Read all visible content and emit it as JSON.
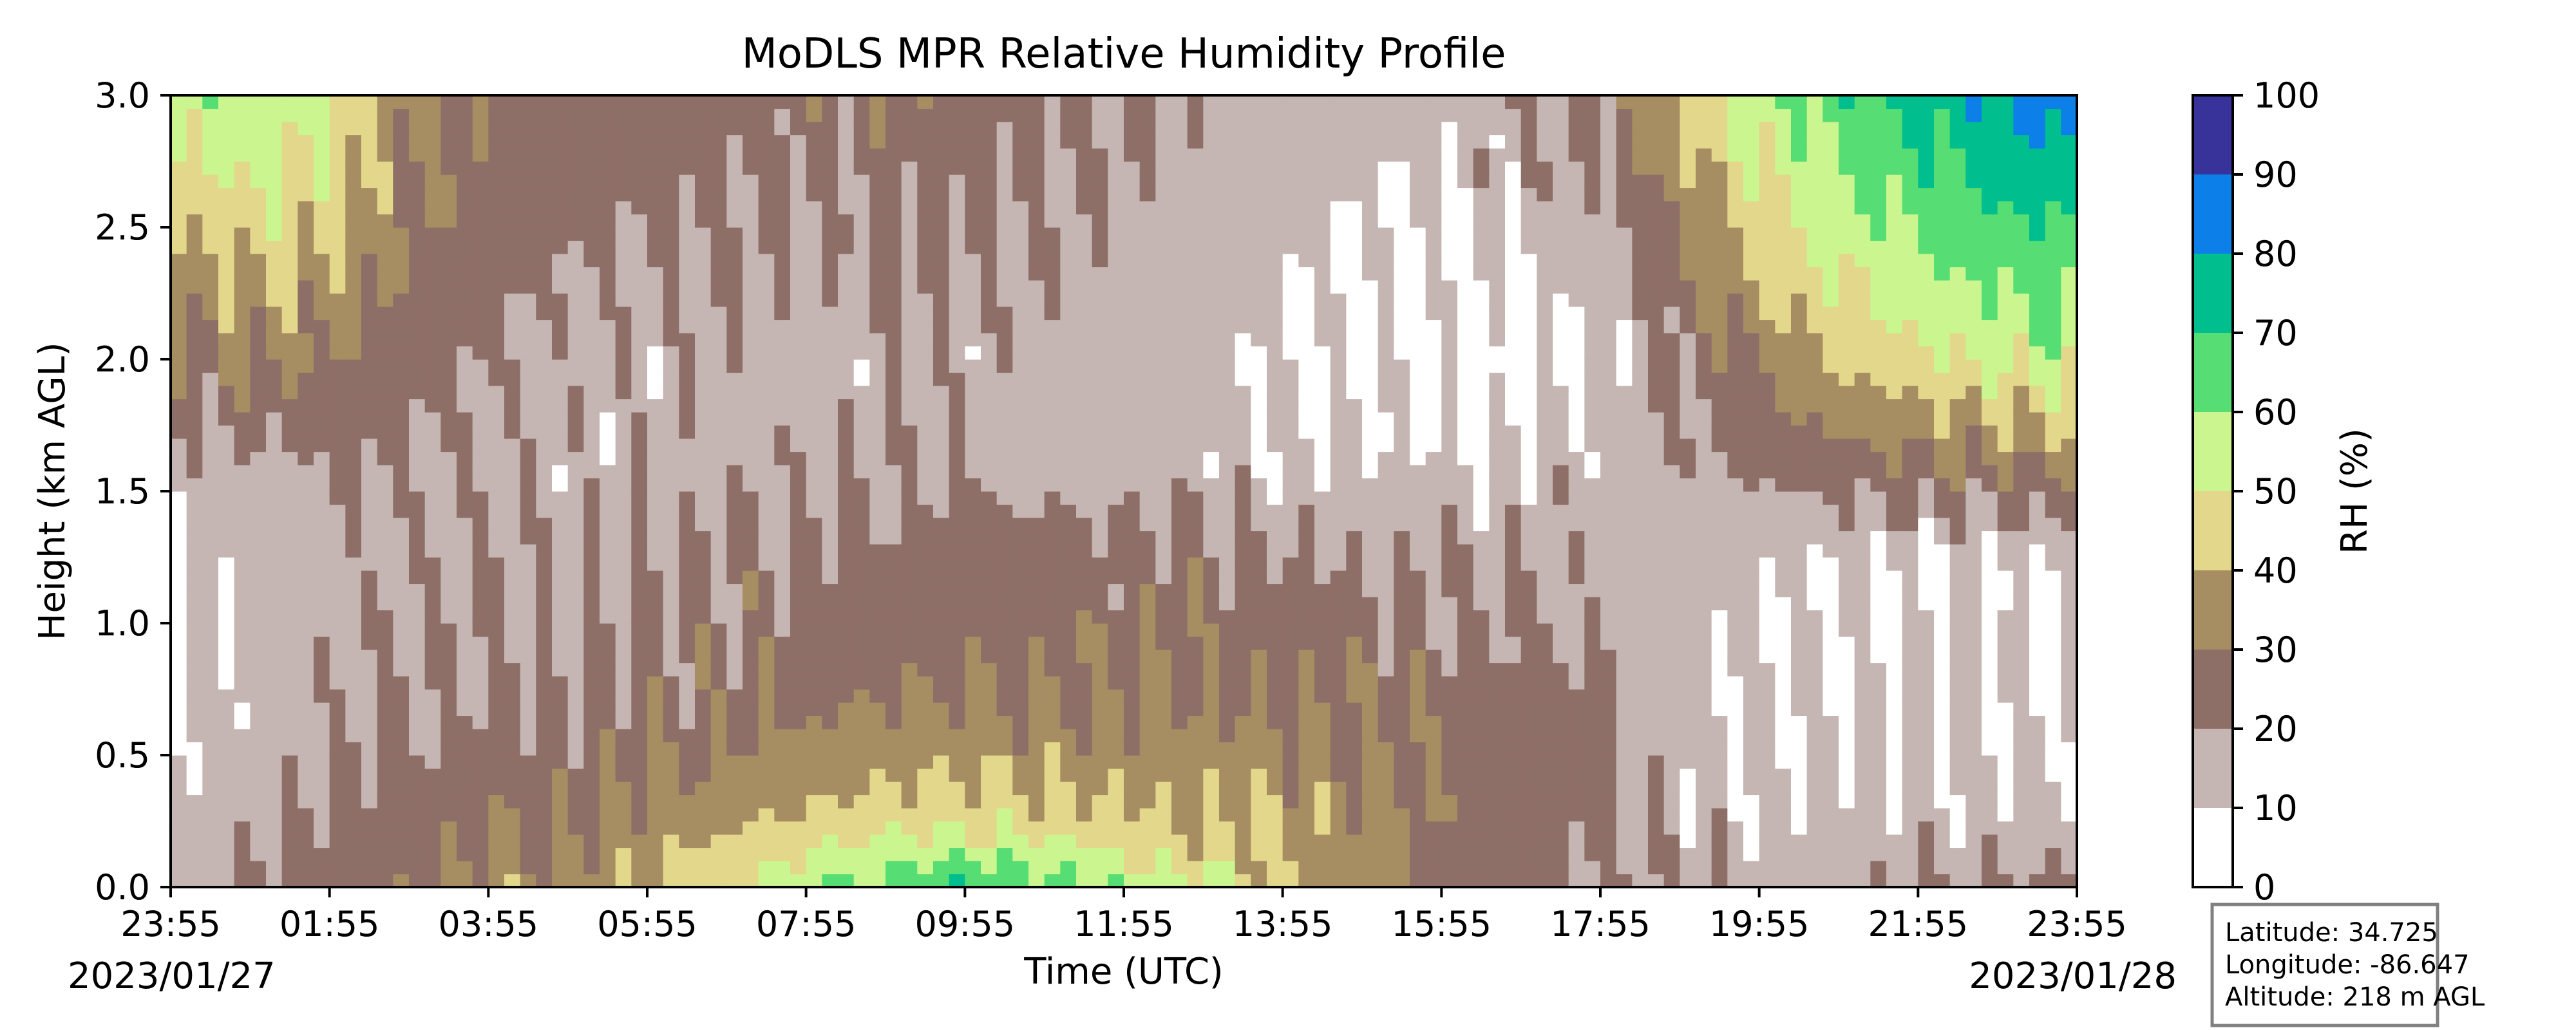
{
  "chart_data": {
    "type": "heatmap",
    "title": "MoDLS MPR Relative Humidity Profile",
    "xlabel": "Time (UTC)",
    "ylabel": "Height (km AGL)",
    "x_ticks": [
      "23:55",
      "01:55",
      "03:55",
      "05:55",
      "07:55",
      "09:55",
      "11:55",
      "13:55",
      "15:55",
      "17:55",
      "19:55",
      "21:55",
      "23:55"
    ],
    "x_range_hours": [
      0,
      24
    ],
    "date_start": "2023/01/27",
    "date_end": "2023/01/28",
    "y_ticks": [
      "0.0",
      "0.5",
      "1.0",
      "1.5",
      "2.0",
      "2.5",
      "3.0"
    ],
    "ylim": [
      0,
      3
    ],
    "colorbar": {
      "label": "RH (%)",
      "ticks": [
        "0",
        "10",
        "20",
        "30",
        "40",
        "50",
        "60",
        "70",
        "80",
        "90",
        "100"
      ],
      "range": [
        0,
        100
      ],
      "levels": [
        {
          "range": [
            0,
            10
          ],
          "color": "#ffffff"
        },
        {
          "range": [
            10,
            20
          ],
          "color": "#c5b5b3"
        },
        {
          "range": [
            20,
            30
          ],
          "color": "#8e6f67"
        },
        {
          "range": [
            30,
            40
          ],
          "color": "#a68d62"
        },
        {
          "range": [
            40,
            50
          ],
          "color": "#e2d78a"
        },
        {
          "range": [
            50,
            60
          ],
          "color": "#cbf58f"
        },
        {
          "range": [
            60,
            70
          ],
          "color": "#56dd74"
        },
        {
          "range": [
            70,
            80
          ],
          "color": "#00be8e"
        },
        {
          "range": [
            80,
            90
          ],
          "color": "#0c7fe8"
        },
        {
          "range": [
            90,
            100
          ],
          "color": "#38339b"
        }
      ]
    },
    "rh_profiles": [
      {
        "time_h": 0.0,
        "rh": [
          14,
          14,
          12,
          9,
          14,
          28,
          40,
          55
        ]
      },
      {
        "time_h": 0.5,
        "rh": [
          18,
          15,
          12,
          10,
          15,
          30,
          42,
          58
        ]
      },
      {
        "time_h": 1.0,
        "rh": [
          22,
          17,
          14,
          12,
          17,
          32,
          46,
          60
        ]
      },
      {
        "time_h": 2.0,
        "rh": [
          25,
          22,
          18,
          17,
          20,
          30,
          40,
          50
        ]
      },
      {
        "time_h": 3.0,
        "rh": [
          28,
          25,
          20,
          18,
          19,
          25,
          30,
          35
        ]
      },
      {
        "time_h": 4.0,
        "rh": [
          32,
          28,
          22,
          19,
          17,
          20,
          26,
          28
        ]
      },
      {
        "time_h": 5.0,
        "rh": [
          35,
          30,
          22,
          18,
          15,
          16,
          22,
          25
        ]
      },
      {
        "time_h": 6.0,
        "rh": [
          42,
          34,
          25,
          20,
          16,
          15,
          20,
          24
        ]
      },
      {
        "time_h": 7.0,
        "rh": [
          48,
          38,
          27,
          22,
          17,
          16,
          21,
          25
        ]
      },
      {
        "time_h": 8.0,
        "rh": [
          58,
          42,
          30,
          23,
          17,
          15,
          20,
          25
        ]
      },
      {
        "time_h": 9.0,
        "rh": [
          65,
          45,
          32,
          24,
          18,
          16,
          22,
          26
        ]
      },
      {
        "time_h": 10.0,
        "rh": [
          70,
          47,
          33,
          25,
          18,
          16,
          21,
          25
        ]
      },
      {
        "time_h": 11.0,
        "rh": [
          65,
          45,
          32,
          24,
          17,
          15,
          19,
          24
        ]
      },
      {
        "time_h": 12.0,
        "rh": [
          58,
          42,
          32,
          24,
          16,
          14,
          17,
          21
        ]
      },
      {
        "time_h": 13.0,
        "rh": [
          50,
          40,
          32,
          24,
          15,
          13,
          15,
          18
        ]
      },
      {
        "time_h": 14.0,
        "rh": [
          42,
          38,
          31,
          22,
          13,
          9,
          12,
          16
        ]
      },
      {
        "time_h": 15.0,
        "rh": [
          35,
          33,
          30,
          20,
          12,
          7,
          9,
          14
        ]
      },
      {
        "time_h": 16.0,
        "rh": [
          25,
          30,
          28,
          19,
          12,
          6,
          9,
          14
        ]
      },
      {
        "time_h": 17.0,
        "rh": [
          22,
          24,
          25,
          18,
          13,
          7,
          12,
          20
        ]
      },
      {
        "time_h": 18.0,
        "rh": [
          20,
          22,
          22,
          17,
          15,
          10,
          16,
          25
        ]
      },
      {
        "time_h": 19.0,
        "rh": [
          18,
          15,
          14,
          11,
          18,
          22,
          32,
          42
        ]
      },
      {
        "time_h": 20.0,
        "rh": [
          16,
          13,
          12,
          10,
          22,
          32,
          44,
          55
        ]
      },
      {
        "time_h": 21.0,
        "rh": [
          15,
          13,
          12,
          9,
          26,
          42,
          55,
          65
        ]
      },
      {
        "time_h": 22.0,
        "rh": [
          18,
          14,
          12,
          8,
          28,
          48,
          62,
          72
        ]
      },
      {
        "time_h": 23.0,
        "rh": [
          20,
          14,
          11,
          9,
          30,
          52,
          68,
          82
        ]
      },
      {
        "time_h": 24.0,
        "rh": [
          22,
          14,
          10,
          8,
          32,
          56,
          70,
          85
        ]
      }
    ],
    "rh_heights_km": [
      0.0,
      0.25,
      0.6,
      1.2,
      1.6,
      2.0,
      2.5,
      3.0
    ]
  },
  "info_box": {
    "latitude": "Latitude: 34.725",
    "longitude": "Longitude: -86.647",
    "altitude": "Altitude: 218 m AGL"
  }
}
